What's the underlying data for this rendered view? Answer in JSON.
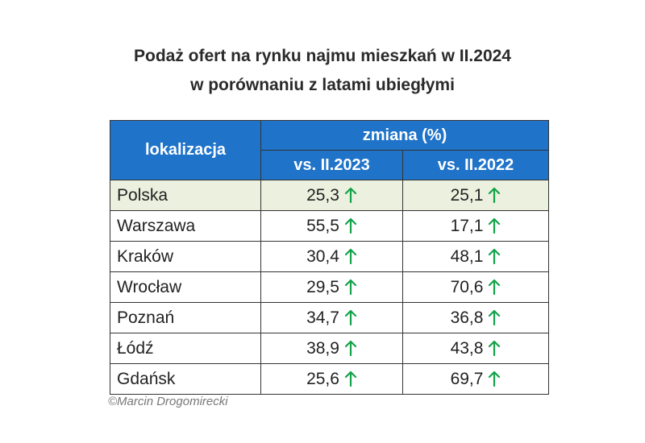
{
  "chart_data": {
    "type": "table",
    "title_line1": "Podaż ofert na rynku najmu mieszkań w II.2024",
    "title_line2": "w porównaniu z latami ubiegłymi",
    "header": {
      "location": "lokalizacja",
      "group": "zmiana (%)",
      "col1": "vs. II.2023",
      "col2": "vs. II.2022"
    },
    "rows": [
      {
        "name": "Polska",
        "v2023": "25,3",
        "v2022": "25,1",
        "highlight": true
      },
      {
        "name": "Warszawa",
        "v2023": "55,5",
        "v2022": "17,1",
        "highlight": false
      },
      {
        "name": "Kraków",
        "v2023": "30,4",
        "v2022": "48,1",
        "highlight": false
      },
      {
        "name": "Wrocław",
        "v2023": "29,5",
        "v2022": "70,6",
        "highlight": false
      },
      {
        "name": "Poznań",
        "v2023": "34,7",
        "v2022": "36,8",
        "highlight": false
      },
      {
        "name": "Łódź",
        "v2023": "38,9",
        "v2022": "43,8",
        "highlight": false
      },
      {
        "name": "Gdańsk",
        "v2023": "25,6",
        "v2022": "69,7",
        "highlight": false
      }
    ],
    "trend_icon": "arrow-up-icon",
    "colors": {
      "header_bg": "#1f73c9",
      "highlight_bg": "#ebf1de",
      "arrow": "#14a34a"
    }
  },
  "credit": "©Marcin Drogomirecki"
}
